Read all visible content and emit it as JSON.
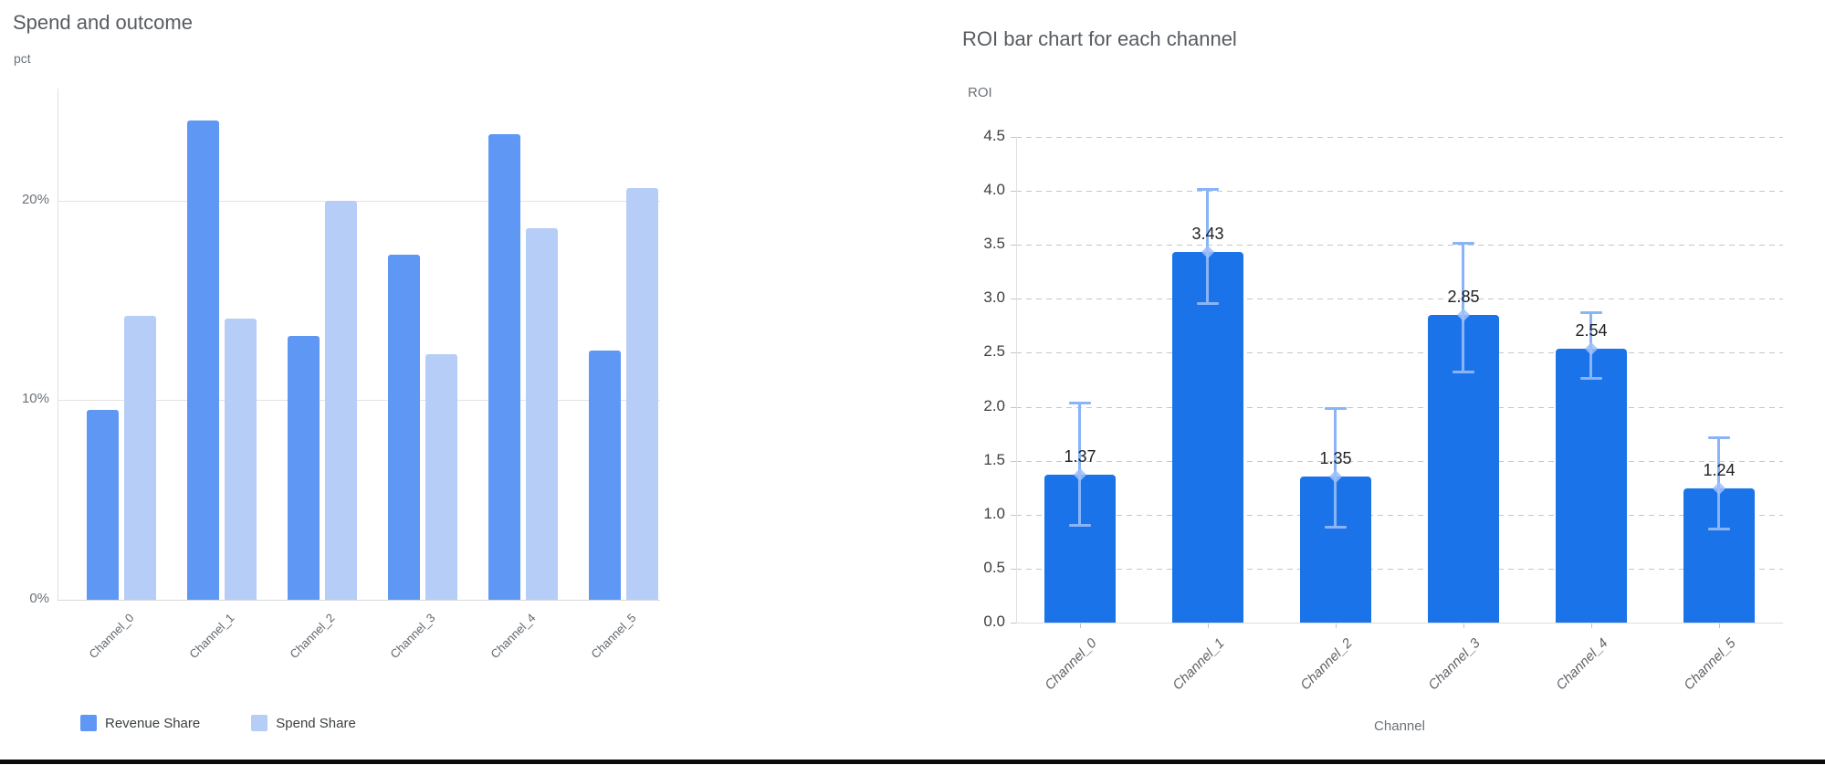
{
  "chart_data": [
    {
      "type": "bar",
      "title": "Spend and outcome",
      "xlabel": "",
      "ylabel": "pct",
      "categories": [
        "Channel_0",
        "Channel_1",
        "Channel_2",
        "Channel_3",
        "Channel_4",
        "Channel_5"
      ],
      "series": [
        {
          "name": "Revenue Share",
          "color": "#5f97f5",
          "values": [
            9.5,
            24.0,
            13.2,
            17.3,
            23.3,
            12.5
          ]
        },
        {
          "name": "Spend Share",
          "color": "#b6cdf8",
          "values": [
            14.2,
            14.1,
            20.0,
            12.3,
            18.6,
            20.6
          ]
        }
      ],
      "y_ticks": [
        {
          "label": "0%",
          "value": 0
        },
        {
          "label": "10%",
          "value": 10
        },
        {
          "label": "20%",
          "value": 20
        }
      ],
      "ylim": [
        0,
        25.6
      ],
      "grid": "solid",
      "legend_position": "bottom"
    },
    {
      "type": "bar",
      "title": "ROI bar chart for each channel",
      "xlabel": "Channel",
      "ylabel": "ROI",
      "categories": [
        "Channel_0",
        "Channel_1",
        "Channel_2",
        "Channel_3",
        "Channel_4",
        "Channel_5"
      ],
      "values": [
        1.37,
        3.43,
        1.35,
        2.85,
        2.54,
        1.24
      ],
      "value_labels": [
        "1.37",
        "3.43",
        "1.35",
        "2.85",
        "2.54",
        "1.24"
      ],
      "error_low": [
        0.9,
        2.95,
        0.88,
        2.32,
        2.26,
        0.86
      ],
      "error_high": [
        2.04,
        4.02,
        1.99,
        3.52,
        2.88,
        1.72
      ],
      "bar_color": "#1a73e8",
      "error_color": "#8ab4f8",
      "error_marker_color": "#9ec0f9",
      "y_ticks": [
        {
          "label": "0.0",
          "value": 0.0
        },
        {
          "label": "0.5",
          "value": 0.5
        },
        {
          "label": "1.0",
          "value": 1.0
        },
        {
          "label": "1.5",
          "value": 1.5
        },
        {
          "label": "2.0",
          "value": 2.0
        },
        {
          "label": "2.5",
          "value": 2.5
        },
        {
          "label": "3.0",
          "value": 3.0
        },
        {
          "label": "3.5",
          "value": 3.5
        },
        {
          "label": "4.0",
          "value": 4.0
        },
        {
          "label": "4.5",
          "value": 4.5
        }
      ],
      "ylim": [
        0,
        4.5
      ],
      "grid": "dashed",
      "legend_position": "none"
    }
  ]
}
